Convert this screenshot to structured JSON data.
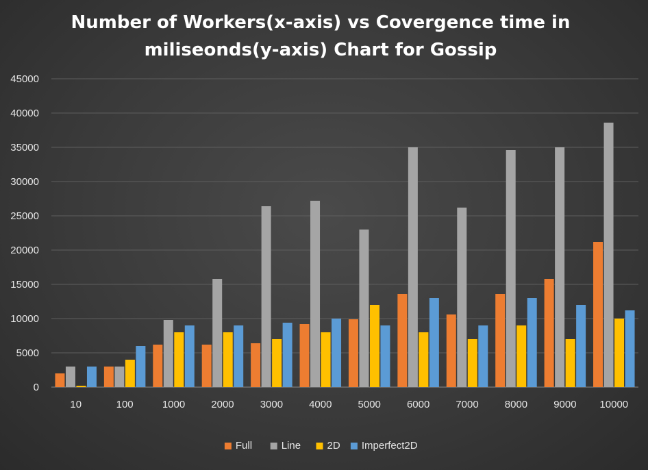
{
  "chart_data": {
    "type": "bar",
    "title_line1": "Number of Workers(x-axis) vs Covergence time in",
    "title_line2": "miliseonds(y-axis) Chart for Gossip",
    "categories": [
      "10",
      "100",
      "1000",
      "2000",
      "3000",
      "4000",
      "5000",
      "6000",
      "7000",
      "8000",
      "9000",
      "10000"
    ],
    "series": [
      {
        "name": "Full",
        "color": "#ed7d31",
        "values": [
          2000,
          3000,
          6200,
          6200,
          6400,
          9200,
          9900,
          13600,
          10600,
          13600,
          15800,
          21200
        ]
      },
      {
        "name": "Line",
        "color": "#a5a5a5",
        "values": [
          3000,
          3000,
          9800,
          15800,
          26400,
          27200,
          23000,
          35000,
          26200,
          34600,
          35000,
          38600
        ]
      },
      {
        "name": "2D",
        "color": "#ffc000",
        "values": [
          200,
          4000,
          8000,
          8000,
          7000,
          8000,
          12000,
          8000,
          7000,
          9000,
          7000,
          10000
        ]
      },
      {
        "name": "Imperfect2D",
        "color": "#5b9bd5",
        "values": [
          3000,
          6000,
          9000,
          9000,
          9400,
          10000,
          9000,
          13000,
          9000,
          13000,
          12000,
          11200
        ]
      }
    ],
    "ylim": [
      0,
      45000
    ],
    "yticks": [
      "0",
      "5000",
      "10000",
      "15000",
      "20000",
      "25000",
      "30000",
      "35000",
      "40000",
      "45000"
    ],
    "grid": true,
    "legend_position": "bottom"
  }
}
